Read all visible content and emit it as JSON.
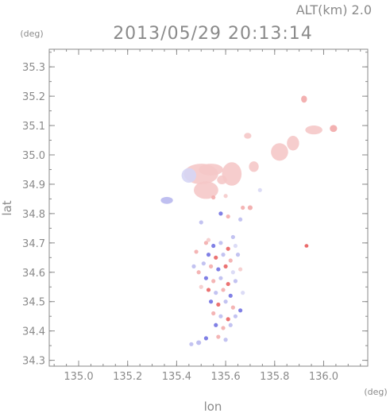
{
  "chart_data": {
    "type": "scatter",
    "header": {
      "altitude_label": "ALT(km) 2.0",
      "datetime": "2013/05/29 20:13:14"
    },
    "xlabel": "lon",
    "ylabel": "lat",
    "x_unit": "(deg)",
    "y_unit": "(deg)",
    "xlim": [
      134.88,
      136.18
    ],
    "ylim": [
      34.28,
      35.36
    ],
    "xticks": [
      "135.0",
      "135.2",
      "135.4",
      "135.6",
      "135.8",
      "136.0"
    ],
    "yticks": [
      "34.3",
      "34.4",
      "34.5",
      "34.6",
      "34.7",
      "34.8",
      "34.9",
      "35.0",
      "35.1",
      "35.2",
      "35.3"
    ],
    "grid": false,
    "legend": "none",
    "colors": {
      "positive_light": "#f5c8c8",
      "positive_mid": "#f2a8a8",
      "positive_strong": "#e85a5a",
      "negative_light": "#d6d6f5",
      "negative_mid": "#b8b8ee",
      "negative_strong": "#6a6ae0",
      "axis": "#8a8a8a"
    },
    "regions": [
      {
        "lon": 135.5,
        "lat": 34.935,
        "rx": 0.07,
        "ry": 0.035,
        "tone": "positive_light"
      },
      {
        "lon": 135.54,
        "lat": 34.95,
        "rx": 0.05,
        "ry": 0.02,
        "tone": "positive_light"
      },
      {
        "lon": 135.52,
        "lat": 34.88,
        "rx": 0.05,
        "ry": 0.03,
        "tone": "positive_light"
      },
      {
        "lon": 135.45,
        "lat": 34.93,
        "rx": 0.03,
        "ry": 0.025,
        "tone": "negative_light"
      },
      {
        "lon": 135.625,
        "lat": 34.935,
        "rx": 0.04,
        "ry": 0.04,
        "tone": "positive_light"
      },
      {
        "lon": 135.585,
        "lat": 34.915,
        "rx": 0.02,
        "ry": 0.015,
        "tone": "positive_light"
      },
      {
        "lon": 135.715,
        "lat": 34.96,
        "rx": 0.02,
        "ry": 0.018,
        "tone": "positive_light"
      },
      {
        "lon": 135.82,
        "lat": 35.01,
        "rx": 0.035,
        "ry": 0.03,
        "tone": "positive_light"
      },
      {
        "lon": 135.875,
        "lat": 35.04,
        "rx": 0.025,
        "ry": 0.025,
        "tone": "positive_light"
      },
      {
        "lon": 135.96,
        "lat": 35.085,
        "rx": 0.035,
        "ry": 0.015,
        "tone": "positive_light"
      },
      {
        "lon": 136.04,
        "lat": 35.09,
        "rx": 0.015,
        "ry": 0.012,
        "tone": "positive_mid"
      },
      {
        "lon": 135.92,
        "lat": 35.19,
        "rx": 0.012,
        "ry": 0.012,
        "tone": "positive_mid"
      },
      {
        "lon": 135.69,
        "lat": 35.065,
        "rx": 0.015,
        "ry": 0.01,
        "tone": "positive_light"
      },
      {
        "lon": 135.36,
        "lat": 34.845,
        "rx": 0.025,
        "ry": 0.012,
        "tone": "negative_mid"
      },
      {
        "lon": 135.7,
        "lat": 34.82,
        "rx": 0.01,
        "ry": 0.008,
        "tone": "positive_mid"
      },
      {
        "lon": 135.93,
        "lat": 34.69,
        "rx": 0.008,
        "ry": 0.006,
        "tone": "positive_strong"
      },
      {
        "lon": 135.49,
        "lat": 34.36,
        "rx": 0.01,
        "ry": 0.008,
        "tone": "negative_mid"
      }
    ],
    "points": [
      {
        "lon": 135.58,
        "lat": 34.8,
        "tone": "negative_strong"
      },
      {
        "lon": 135.61,
        "lat": 34.79,
        "tone": "positive_mid"
      },
      {
        "lon": 135.5,
        "lat": 34.77,
        "tone": "negative_mid"
      },
      {
        "lon": 135.66,
        "lat": 34.78,
        "tone": "negative_mid"
      },
      {
        "lon": 135.52,
        "lat": 34.7,
        "tone": "positive_mid"
      },
      {
        "lon": 135.55,
        "lat": 34.69,
        "tone": "negative_strong"
      },
      {
        "lon": 135.58,
        "lat": 34.7,
        "tone": "negative_mid"
      },
      {
        "lon": 135.61,
        "lat": 34.68,
        "tone": "positive_strong"
      },
      {
        "lon": 135.64,
        "lat": 34.69,
        "tone": "negative_light"
      },
      {
        "lon": 135.48,
        "lat": 34.67,
        "tone": "positive_mid"
      },
      {
        "lon": 135.53,
        "lat": 34.66,
        "tone": "negative_strong"
      },
      {
        "lon": 135.56,
        "lat": 34.65,
        "tone": "positive_strong"
      },
      {
        "lon": 135.59,
        "lat": 34.66,
        "tone": "negative_mid"
      },
      {
        "lon": 135.62,
        "lat": 34.64,
        "tone": "positive_mid"
      },
      {
        "lon": 135.65,
        "lat": 34.66,
        "tone": "negative_mid"
      },
      {
        "lon": 135.51,
        "lat": 34.63,
        "tone": "negative_mid"
      },
      {
        "lon": 135.54,
        "lat": 34.62,
        "tone": "positive_mid"
      },
      {
        "lon": 135.57,
        "lat": 34.61,
        "tone": "negative_strong"
      },
      {
        "lon": 135.6,
        "lat": 34.62,
        "tone": "positive_strong"
      },
      {
        "lon": 135.63,
        "lat": 34.6,
        "tone": "negative_light"
      },
      {
        "lon": 135.49,
        "lat": 34.6,
        "tone": "positive_mid"
      },
      {
        "lon": 135.52,
        "lat": 34.58,
        "tone": "negative_strong"
      },
      {
        "lon": 135.55,
        "lat": 34.57,
        "tone": "positive_mid"
      },
      {
        "lon": 135.58,
        "lat": 34.58,
        "tone": "negative_mid"
      },
      {
        "lon": 135.61,
        "lat": 34.56,
        "tone": "positive_strong"
      },
      {
        "lon": 135.64,
        "lat": 34.57,
        "tone": "negative_mid"
      },
      {
        "lon": 135.53,
        "lat": 34.54,
        "tone": "positive_strong"
      },
      {
        "lon": 135.56,
        "lat": 34.53,
        "tone": "negative_mid"
      },
      {
        "lon": 135.59,
        "lat": 34.54,
        "tone": "positive_mid"
      },
      {
        "lon": 135.62,
        "lat": 34.52,
        "tone": "negative_strong"
      },
      {
        "lon": 135.54,
        "lat": 34.5,
        "tone": "negative_strong"
      },
      {
        "lon": 135.57,
        "lat": 34.49,
        "tone": "positive_strong"
      },
      {
        "lon": 135.6,
        "lat": 34.5,
        "tone": "negative_mid"
      },
      {
        "lon": 135.63,
        "lat": 34.48,
        "tone": "positive_mid"
      },
      {
        "lon": 135.66,
        "lat": 34.47,
        "tone": "negative_strong"
      },
      {
        "lon": 135.55,
        "lat": 34.46,
        "tone": "positive_mid"
      },
      {
        "lon": 135.58,
        "lat": 34.45,
        "tone": "negative_mid"
      },
      {
        "lon": 135.61,
        "lat": 34.44,
        "tone": "positive_strong"
      },
      {
        "lon": 135.64,
        "lat": 34.45,
        "tone": "negative_mid"
      },
      {
        "lon": 135.56,
        "lat": 34.42,
        "tone": "negative_strong"
      },
      {
        "lon": 135.59,
        "lat": 34.41,
        "tone": "positive_mid"
      },
      {
        "lon": 135.62,
        "lat": 34.42,
        "tone": "negative_mid"
      },
      {
        "lon": 135.57,
        "lat": 34.38,
        "tone": "positive_mid"
      },
      {
        "lon": 135.6,
        "lat": 34.37,
        "tone": "negative_mid"
      },
      {
        "lon": 135.52,
        "lat": 34.375,
        "tone": "negative_strong"
      },
      {
        "lon": 135.46,
        "lat": 34.355,
        "tone": "negative_mid"
      },
      {
        "lon": 135.67,
        "lat": 34.82,
        "tone": "positive_mid"
      },
      {
        "lon": 135.55,
        "lat": 34.855,
        "tone": "positive_mid"
      },
      {
        "lon": 135.6,
        "lat": 34.86,
        "tone": "positive_light"
      },
      {
        "lon": 135.74,
        "lat": 34.88,
        "tone": "negative_light"
      },
      {
        "lon": 135.47,
        "lat": 34.62,
        "tone": "negative_mid"
      },
      {
        "lon": 135.66,
        "lat": 34.61,
        "tone": "positive_light"
      },
      {
        "lon": 135.5,
        "lat": 34.55,
        "tone": "positive_light"
      },
      {
        "lon": 135.67,
        "lat": 34.53,
        "tone": "negative_light"
      },
      {
        "lon": 135.53,
        "lat": 34.71,
        "tone": "positive_light"
      },
      {
        "lon": 135.63,
        "lat": 34.72,
        "tone": "negative_mid"
      }
    ]
  }
}
